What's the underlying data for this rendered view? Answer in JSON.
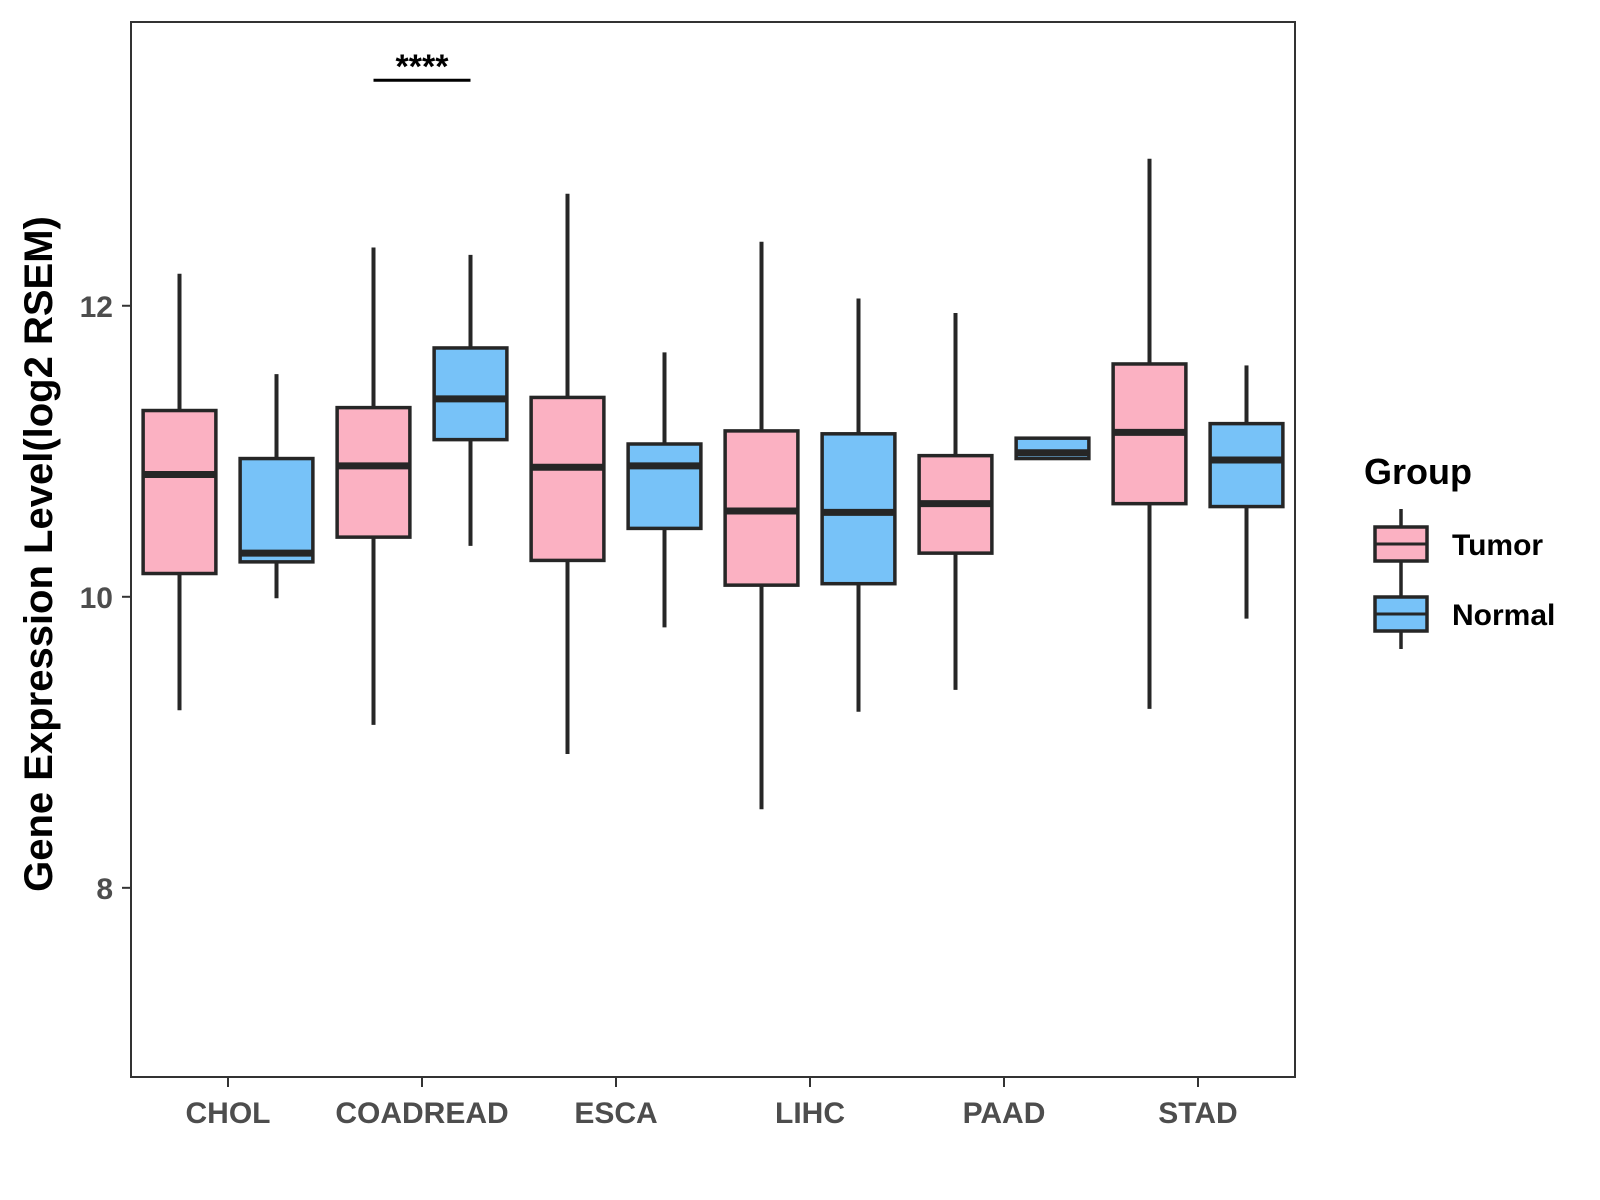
{
  "chart_data": {
    "type": "boxplot",
    "ylabel": "Gene Expression Level(log2 RSEM)",
    "xlabel": "",
    "ylim": [
      6.7,
      13.95
    ],
    "yticks": [
      8,
      10,
      12
    ],
    "categories": [
      "CHOL",
      "COADREAD",
      "ESCA",
      "LIHC",
      "PAAD",
      "STAD"
    ],
    "legend": {
      "title": "Group",
      "position": "right",
      "entries": [
        "Tumor",
        "Normal"
      ]
    },
    "colors": {
      "Tumor": "#fbb1c2",
      "Normal": "#77c2f8",
      "outline": "#262626"
    },
    "series": [
      {
        "name": "Tumor",
        "boxes": [
          {
            "min": 9.22,
            "q1": 10.16,
            "median": 10.84,
            "q3": 11.28,
            "max": 12.22
          },
          {
            "min": 9.12,
            "q1": 10.41,
            "median": 10.9,
            "q3": 11.3,
            "max": 12.4
          },
          {
            "min": 8.92,
            "q1": 10.25,
            "median": 10.89,
            "q3": 11.37,
            "max": 12.77
          },
          {
            "min": 8.54,
            "q1": 10.08,
            "median": 10.59,
            "q3": 11.14,
            "max": 12.44
          },
          {
            "min": 9.36,
            "q1": 10.3,
            "median": 10.64,
            "q3": 10.97,
            "max": 11.95
          },
          {
            "min": 9.23,
            "q1": 10.64,
            "median": 11.13,
            "q3": 11.6,
            "max": 13.01
          }
        ]
      },
      {
        "name": "Normal",
        "boxes": [
          {
            "min": 9.99,
            "q1": 10.24,
            "median": 10.3,
            "q3": 10.95,
            "max": 11.53
          },
          {
            "min": 10.35,
            "q1": 11.08,
            "median": 11.36,
            "q3": 11.71,
            "max": 12.35
          },
          {
            "min": 9.79,
            "q1": 10.47,
            "median": 10.9,
            "q3": 11.05,
            "max": 11.68
          },
          {
            "min": 9.21,
            "q1": 10.09,
            "median": 10.58,
            "q3": 11.12,
            "max": 12.05
          },
          {
            "min": 10.95,
            "q1": 10.95,
            "median": 10.99,
            "q3": 11.09,
            "max": 11.09
          },
          {
            "min": 9.85,
            "q1": 10.62,
            "median": 10.94,
            "q3": 11.19,
            "max": 11.59
          }
        ]
      }
    ],
    "annotations": [
      {
        "category": "COADREAD",
        "text": "****",
        "y": 13.55
      }
    ]
  }
}
